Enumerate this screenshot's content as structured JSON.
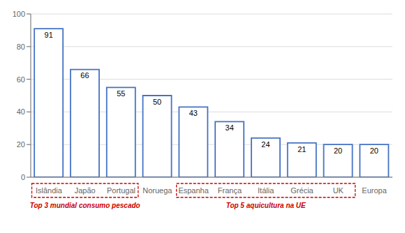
{
  "chart_data": {
    "type": "bar",
    "categories": [
      "Islândia",
      "Japão",
      "Portugal",
      "Noruega",
      "Espanha",
      "França",
      "Itália",
      "Grécia",
      "UK",
      "Europa"
    ],
    "values": [
      91,
      66,
      55,
      50,
      43,
      34,
      24,
      21,
      20,
      20
    ],
    "color": "#4472c4",
    "ylim": [
      0,
      100
    ],
    "yticks": [
      0,
      20,
      40,
      60,
      80,
      100
    ],
    "grid": true,
    "data_labels": true,
    "annotations": [
      {
        "text": "Top 3 mundial consumo pescado",
        "categories": [
          "Islândia",
          "Japão",
          "Portugal"
        ],
        "color": "#cc0000"
      },
      {
        "text": "Top 5 aquicultura na UE",
        "categories": [
          "Espanha",
          "França",
          "Itália",
          "Grécia",
          "UK"
        ],
        "color": "#cc0000"
      }
    ]
  }
}
